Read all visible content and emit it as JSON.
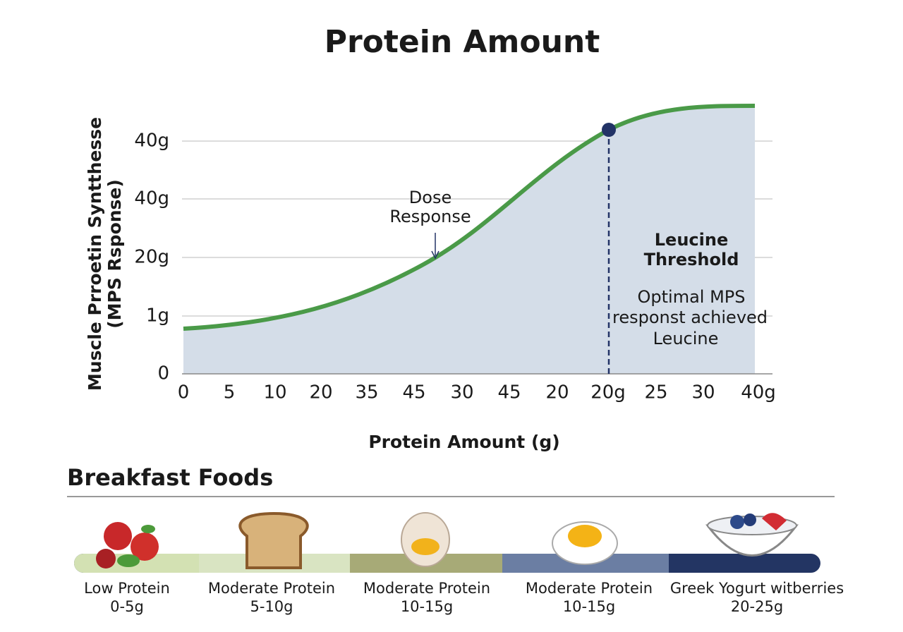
{
  "header": {
    "title": "Protein Amount"
  },
  "plot": {
    "y_axis_title": [
      "Muscle Prroetin Syntthesse",
      "(MPS Rsponse)"
    ],
    "y_tick_labels": [
      "0",
      "1g",
      "20g",
      "40g",
      "40g"
    ],
    "x_tick_labels": [
      "0",
      "5",
      "10",
      "20",
      "35",
      "45",
      "30",
      "45",
      "20",
      "20g",
      "25",
      "30",
      "40g"
    ],
    "x_axis_title": "Protein Amount (g)",
    "annotations": {
      "dose": [
        "Dose",
        "Response"
      ],
      "threshold": [
        "Leucine",
        "Threshold"
      ],
      "optimal": [
        "Optimal MPS",
        "responst achieved",
        "Leucine"
      ]
    }
  },
  "foods": {
    "title": "Breakfast Foods",
    "items": [
      {
        "label": "Low Protein",
        "range": "0-5g"
      },
      {
        "label": "Moderate Protein",
        "range": "5-10g"
      },
      {
        "label": "Moderate Protein",
        "range": "10-15g"
      },
      {
        "label": "Moderate Protein",
        "range": "10-15g"
      },
      {
        "label": "Greek Yogurt witberries",
        "range": "20-25g"
      }
    ]
  }
}
